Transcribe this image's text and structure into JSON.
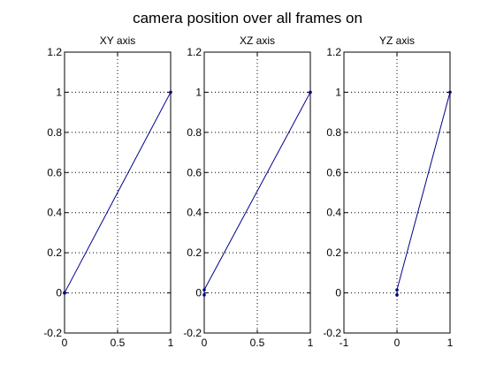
{
  "figure": {
    "title": "camera position over all frames on"
  },
  "style": {
    "line_color": "#00008b",
    "axis_color": "#000000",
    "grid_color": "#000000",
    "background": "#ffffff"
  },
  "chart_data": [
    {
      "type": "line",
      "title": "XY axis",
      "xlabel": "",
      "ylabel": "",
      "xlim": [
        0,
        1
      ],
      "ylim": [
        -0.2,
        1.2
      ],
      "x_ticks": [
        "0",
        "0.5",
        "1"
      ],
      "y_ticks": [
        "-0.2",
        "0",
        "0.2",
        "0.4",
        "0.6",
        "0.8",
        "1",
        "1.2"
      ],
      "grid": true,
      "series": [
        {
          "x": [
            0,
            0,
            1
          ],
          "y": [
            0,
            0,
            1
          ],
          "marker": "dot"
        }
      ]
    },
    {
      "type": "line",
      "title": "XZ axis",
      "xlabel": "",
      "ylabel": "",
      "xlim": [
        0,
        1
      ],
      "ylim": [
        -0.2,
        1.2
      ],
      "x_ticks": [
        "0",
        "0.5",
        "1"
      ],
      "y_ticks": [
        "-0.2",
        "0",
        "0.2",
        "0.4",
        "0.6",
        "0.8",
        "1",
        "1.2"
      ],
      "grid": true,
      "series": [
        {
          "x": [
            0,
            0,
            1
          ],
          "y": [
            -0.01,
            0.015,
            1
          ],
          "marker": "dot"
        }
      ]
    },
    {
      "type": "line",
      "title": "YZ axis",
      "xlabel": "",
      "ylabel": "",
      "xlim": [
        -1,
        1
      ],
      "ylim": [
        -0.2,
        1.2
      ],
      "x_ticks": [
        "-1",
        "0",
        "1"
      ],
      "y_ticks": [
        "-0.2",
        "0",
        "0.2",
        "0.4",
        "0.6",
        "0.8",
        "1",
        "1.2"
      ],
      "grid": true,
      "series": [
        {
          "x": [
            0,
            0,
            1
          ],
          "y": [
            -0.01,
            0.015,
            1
          ],
          "marker": "dot"
        }
      ]
    }
  ]
}
